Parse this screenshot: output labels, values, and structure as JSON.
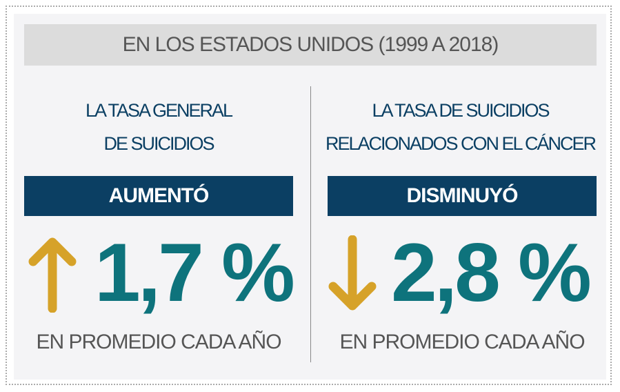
{
  "header": "EN LOS ESTADOS UNIDOS (1999 A 2018)",
  "left": {
    "title_lines": [
      "LA TASA GENERAL",
      "DE SUICIDIOS"
    ],
    "status": "AUMENTÓ",
    "direction": "up",
    "value": "1,7 %",
    "footer": "EN PROMEDIO CADA AÑO"
  },
  "right": {
    "title_lines": [
      "LA TASA DE SUICIDIOS",
      "RELACIONADOS CON EL CÁNCER"
    ],
    "status": "DISMINUYÓ",
    "direction": "down",
    "value": "2,8 %",
    "footer": "EN PROMEDIO CADA AÑO"
  },
  "colors": {
    "navy": "#0b3f63",
    "teal": "#0e737c",
    "gold": "#d6a229",
    "panel": "#f4f4f6",
    "header_bg": "#dcdcdc"
  }
}
